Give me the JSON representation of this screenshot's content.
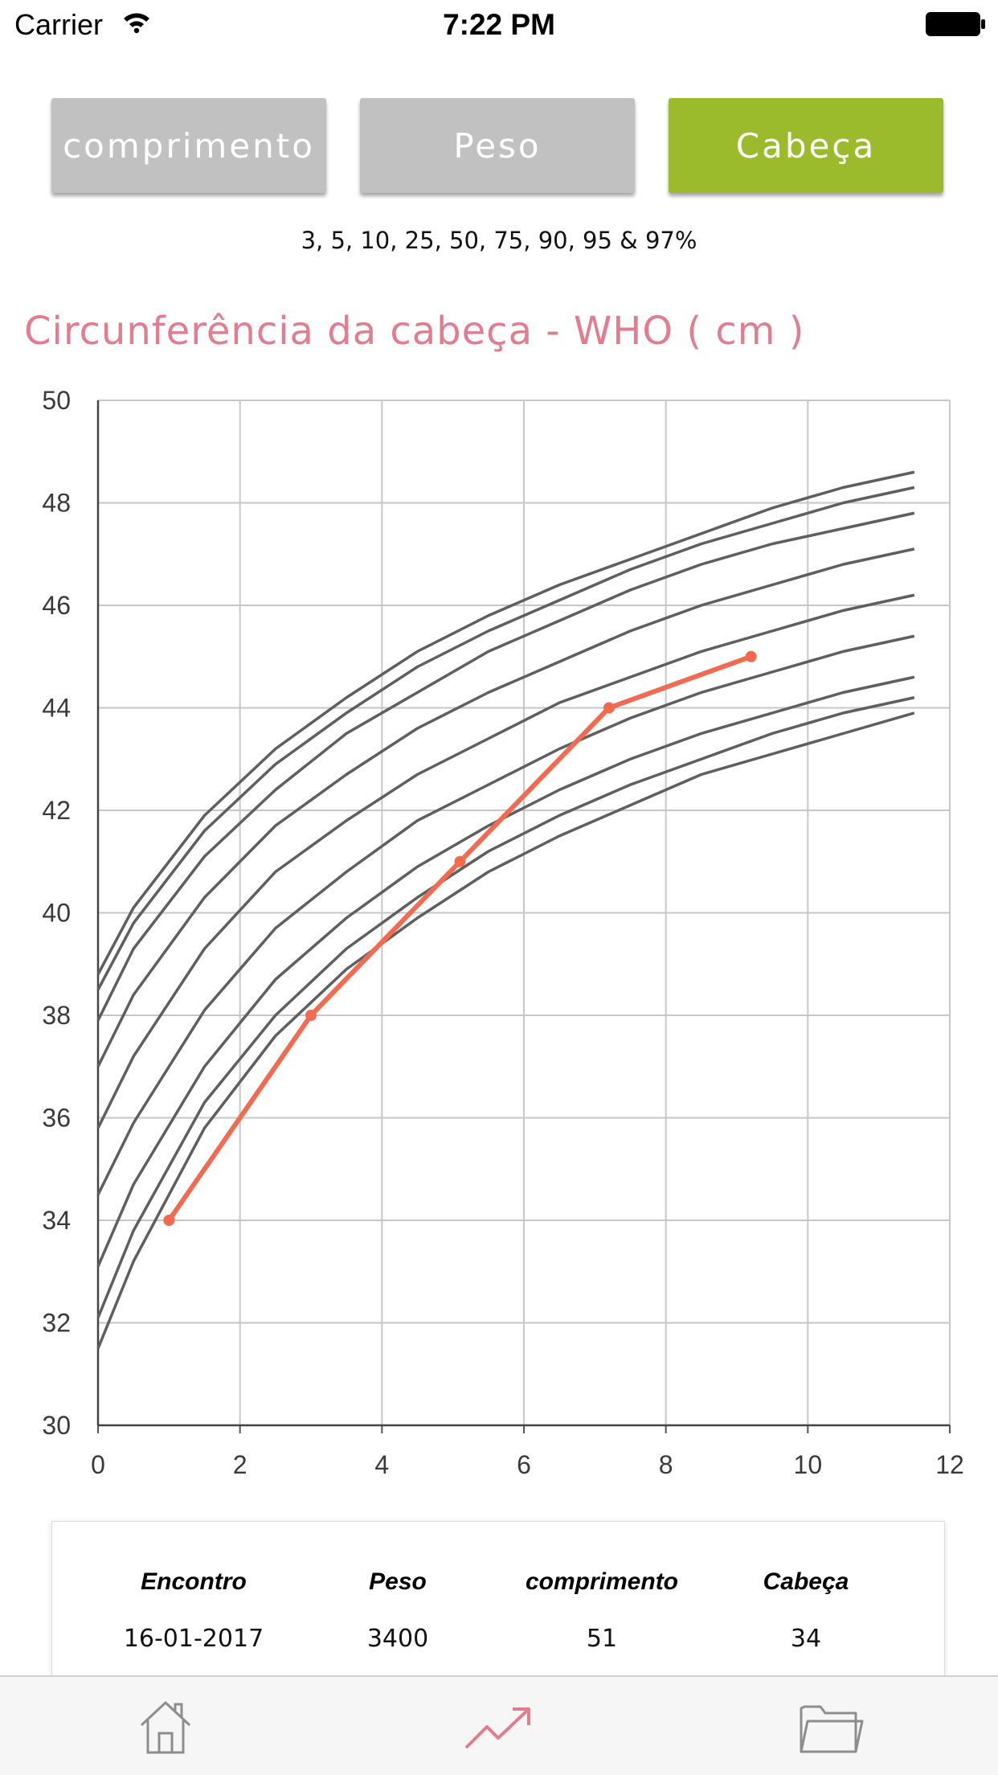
{
  "status_bar": {
    "carrier": "Carrier",
    "time": "7:22 PM"
  },
  "segments": [
    {
      "label": "comprimento",
      "selected": false
    },
    {
      "label": "Peso",
      "selected": false
    },
    {
      "label": "Cabeça",
      "selected": true
    }
  ],
  "colors": {
    "accent_green": "#9bbb2c",
    "inactive_grey": "#c1c1c1",
    "title_pink": "#e27c8e",
    "patient_line": "#f26b50",
    "percentile_lines": "#5f5f5f"
  },
  "percentiles_text": "3, 5, 10, 25, 50, 75, 90, 95 & 97%",
  "chart_title": "Circunferência da cabeça - WHO ( cm )",
  "chart_data": {
    "type": "line",
    "xlim": [
      0,
      12
    ],
    "ylim": [
      30,
      50
    ],
    "x_ticks": [
      "0",
      "2",
      "4",
      "6",
      "8",
      "10",
      "12"
    ],
    "y_ticks": [
      "30",
      "32",
      "34",
      "36",
      "38",
      "40",
      "42",
      "44",
      "46",
      "48",
      "50"
    ],
    "grid": true,
    "x": [
      0,
      0.5,
      1.5,
      2.5,
      3.5,
      4.5,
      5.5,
      6.5,
      7.5,
      8.5,
      9.5,
      10.5,
      11.5
    ],
    "series": [
      {
        "values": [
          31.5,
          33.2,
          35.8,
          37.6,
          38.9,
          39.9,
          40.8,
          41.5,
          42.1,
          42.7,
          43.1,
          43.5,
          43.9
        ]
      },
      {
        "values": [
          32.1,
          33.8,
          36.3,
          38.0,
          39.3,
          40.3,
          41.2,
          41.9,
          42.5,
          43.0,
          43.5,
          43.9,
          44.2
        ]
      },
      {
        "values": [
          33.1,
          34.7,
          37.0,
          38.7,
          39.9,
          40.9,
          41.7,
          42.4,
          43.0,
          43.5,
          43.9,
          44.3,
          44.6
        ]
      },
      {
        "values": [
          34.5,
          35.9,
          38.1,
          39.7,
          40.8,
          41.8,
          42.5,
          43.2,
          43.8,
          44.3,
          44.7,
          45.1,
          45.4
        ]
      },
      {
        "values": [
          35.8,
          37.2,
          39.3,
          40.8,
          41.8,
          42.7,
          43.4,
          44.1,
          44.6,
          45.1,
          45.5,
          45.9,
          46.2
        ]
      },
      {
        "values": [
          37.0,
          38.4,
          40.3,
          41.7,
          42.7,
          43.6,
          44.3,
          44.9,
          45.5,
          46.0,
          46.4,
          46.8,
          47.1
        ]
      },
      {
        "values": [
          37.9,
          39.3,
          41.1,
          42.4,
          43.5,
          44.3,
          45.1,
          45.7,
          46.3,
          46.8,
          47.2,
          47.5,
          47.8
        ]
      },
      {
        "values": [
          38.5,
          39.8,
          41.6,
          42.9,
          43.9,
          44.8,
          45.5,
          46.1,
          46.7,
          47.2,
          47.6,
          48.0,
          48.3
        ]
      },
      {
        "values": [
          38.8,
          40.1,
          41.9,
          43.2,
          44.2,
          45.1,
          45.8,
          46.4,
          46.9,
          47.4,
          47.9,
          48.3,
          48.6
        ]
      }
    ],
    "patient": {
      "x": [
        1,
        3,
        5.1,
        7.2,
        9.2
      ],
      "y": [
        34,
        38,
        41,
        44,
        45
      ]
    }
  },
  "table": {
    "headers": [
      "Encontro",
      "Peso",
      "comprimento",
      "Cabeça"
    ],
    "rows": [
      [
        "16-01-2017",
        "3400",
        "51",
        "34"
      ]
    ]
  },
  "tabs": [
    {
      "name": "home",
      "icon": "home-icon"
    },
    {
      "name": "growth",
      "icon": "trend-up-icon",
      "active": true
    },
    {
      "name": "records",
      "icon": "folder-icon"
    }
  ]
}
